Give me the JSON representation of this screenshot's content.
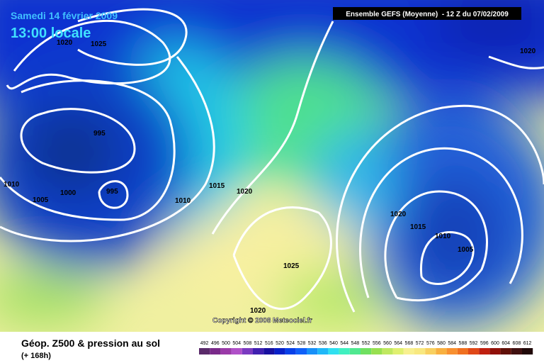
{
  "header": {
    "date": "Samedi 14 février 2009",
    "time": "13:00 locale",
    "model": "Ensemble GEFS (Moyenne)  - 12 Z du 07/02/2009"
  },
  "isobars": [
    "1020",
    "1025",
    "995",
    "1010",
    "1000",
    "995",
    "1005",
    "1010",
    "1015",
    "1020",
    "1025",
    "1020",
    "1020",
    "1020",
    "1015",
    "1010",
    "1005"
  ],
  "copyright": "Copyright © 2008 Meteociel.fr",
  "footer": {
    "title": "Géop. Z500 & pression au sol",
    "lead": "(+ 168h)"
  },
  "legend": {
    "labels": [
      "492",
      "496",
      "500",
      "504",
      "508",
      "512",
      "516",
      "520",
      "524",
      "528",
      "532",
      "536",
      "540",
      "544",
      "548",
      "552",
      "556",
      "560",
      "564",
      "568",
      "572",
      "576",
      "580",
      "584",
      "588",
      "592",
      "596",
      "600",
      "604",
      "608",
      "612"
    ],
    "colors": [
      "#5a2a6a",
      "#7a2a8a",
      "#9a3aa8",
      "#b050c8",
      "#7a3ac0",
      "#4020b0",
      "#1810a0",
      "#0820c8",
      "#0840e8",
      "#1060f8",
      "#1890f8",
      "#20b8f8",
      "#30e0f0",
      "#40f0c0",
      "#50e890",
      "#70e060",
      "#98e050",
      "#c0e860",
      "#e0f070",
      "#f8f090",
      "#f8e880",
      "#f8d060",
      "#f8b040",
      "#f89030",
      "#f07020",
      "#e04818",
      "#c02010",
      "#901008",
      "#601008",
      "#401010",
      "#200808"
    ]
  }
}
